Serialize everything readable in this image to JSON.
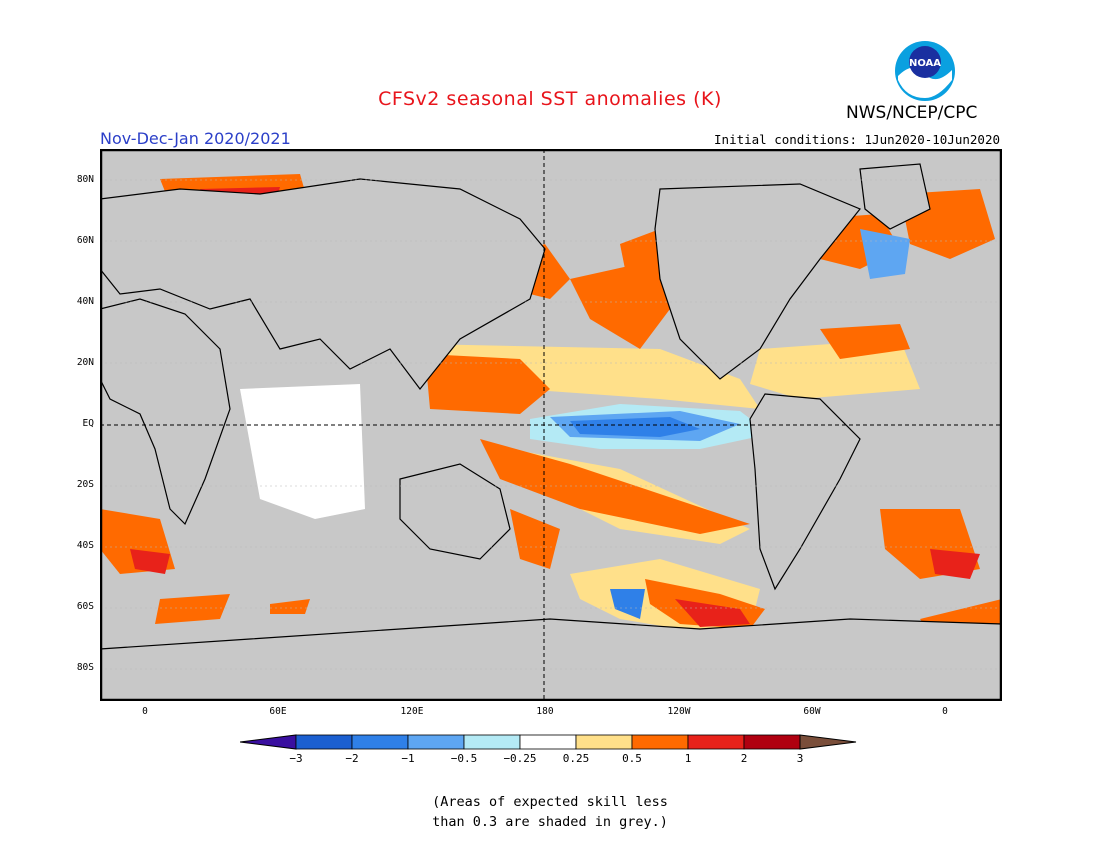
{
  "title": "CFSv2 seasonal SST anomalies (K)",
  "organization": "NWS/NCEP/CPC",
  "logo_text": "NOAA",
  "period": "Nov-Dec-Jan 2020/2021",
  "initial_conditions": "Initial conditions: 1Jun2020-10Jun2020",
  "lat_labels": [
    "80N",
    "60N",
    "40N",
    "20N",
    "EQ",
    "20S",
    "40S",
    "60S",
    "80S"
  ],
  "lon_labels": [
    "0",
    "60E",
    "120E",
    "180",
    "120W",
    "60W",
    "0"
  ],
  "legend": {
    "labels": [
      "-3",
      "-2",
      "-1",
      "-0.5",
      "-0.25",
      "0.25",
      "0.5",
      "1",
      "2",
      "3"
    ],
    "colors": [
      "#3a0fa0",
      "#1b5fd0",
      "#2f80e8",
      "#5ea6f2",
      "#b4eaf5",
      "#ffffff",
      "#ffe08a",
      "#ff6a00",
      "#e8221a",
      "#b00010",
      "#7a4e3a"
    ]
  },
  "note_line1": "(Areas of expected skill less",
  "note_line2": "than 0.3 are shaded in grey.)",
  "colors": {
    "title": "#e8141b",
    "period": "#2b3fc8",
    "grey_mask": "#c8c8c8"
  }
}
